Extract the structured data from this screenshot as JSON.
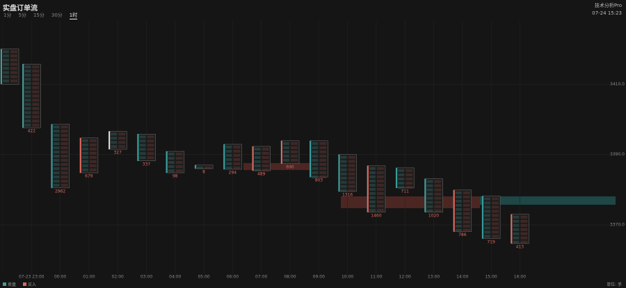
{
  "header": {
    "title": "实盘订单流",
    "tabs": [
      "1分",
      "5分",
      "15分",
      "30分",
      "1时"
    ],
    "active_tab": 4,
    "tool": "技术分析Pro",
    "time": "07-24 15:23"
  },
  "legend": [
    "卖盘",
    "买入"
  ],
  "unit": "单位: 手",
  "chart_data": {
    "type": "footprint",
    "categories": [
      null,
      "07-23 23:00",
      "00:00",
      "01:00",
      "02:00",
      "03:00",
      "04:00",
      "05:00",
      "06:00",
      "07:00",
      "08:00",
      "09:00",
      "10:00",
      "11:00",
      "12:00",
      "13:00",
      "14:00",
      "15:00",
      "16:00"
    ],
    "high": [
      3420,
      3415.7,
      3398.6,
      3394.7,
      3396.6,
      3395.8,
      3390.9,
      3387,
      3392.9,
      3392.3,
      3393.9,
      3393.9,
      3390,
      3386.8,
      3386.2,
      3383.1,
      3379.9,
      3378.2,
      3373
    ],
    "low": [
      3410,
      3397.6,
      3380.5,
      3384.8,
      3391.5,
      3388.2,
      3384.8,
      3386,
      3385.8,
      3385.4,
      3387.4,
      3383.6,
      3379.5,
      3373.6,
      3380.5,
      3373.6,
      3368.1,
      3366.1,
      3364.7
    ],
    "delta": [
      null,
      422,
      2962,
      679,
      327,
      337,
      98,
      8,
      294,
      489,
      690,
      903,
      1316,
      1460,
      711,
      1020,
      786,
      719,
      413
    ],
    "colors": [
      "#36a2a0",
      "#36a2a0",
      "#36a2a0",
      "#e0685e",
      "#e0e0e0",
      "#36a2a0",
      "#36a2a0",
      "#36a2a0",
      "#36a2a0",
      "#e0685e",
      "#e0685e",
      "#36a2a0",
      "#36a2a0",
      "#e0685e",
      "#36a2a0",
      "#36a2a0",
      "#e0685e",
      "#36a2a0",
      "#e0685e"
    ],
    "ylim": [
      3356,
      3428
    ],
    "yticks": [
      {
        "value": 3370,
        "label": "3370.0"
      },
      {
        "value": 3390,
        "label": "3390.0"
      },
      {
        "value": 3410,
        "label": "3410.0"
      }
    ],
    "grid": true
  }
}
